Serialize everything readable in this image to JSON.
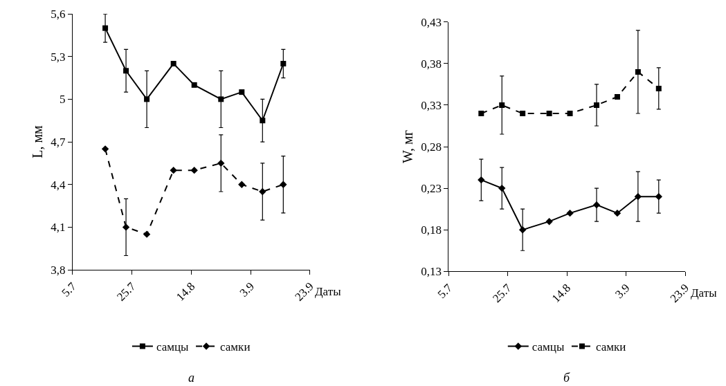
{
  "chart_data": [
    {
      "type": "line",
      "ylabel": "L, мм",
      "xlabel": "Даты",
      "annotations": [
        "а"
      ],
      "legend": "bottom",
      "x": [
        "--07-16",
        "--07-23",
        "--07-30",
        "--08-08",
        "--08-15",
        "--08-24",
        "--08-31",
        "--09-07",
        "--09-14"
      ],
      "xlim": [
        "--07-05",
        "--09-23"
      ],
      "xticks": [
        {
          "value": "--07-05",
          "label": "5.7"
        },
        {
          "value": "--07-25",
          "label": "25.7"
        },
        {
          "value": "--08-14",
          "label": "14.8"
        },
        {
          "value": "--09-03",
          "label": "3.9"
        },
        {
          "value": "--09-23",
          "label": "23.9"
        }
      ],
      "ylim": [
        3.8,
        5.6
      ],
      "yticks": [
        {
          "value": 3.8,
          "label": "3,8"
        },
        {
          "value": 4.1,
          "label": "4,1"
        },
        {
          "value": 4.4,
          "label": "4,4"
        },
        {
          "value": 4.7,
          "label": "4,7"
        },
        5,
        {
          "value": 5.3,
          "label": "5,3"
        },
        {
          "value": 5.6,
          "label": "5,6"
        }
      ],
      "series": [
        {
          "name": "самцы",
          "color": "#000000",
          "marker": "square",
          "line_style": "solid",
          "values": [
            5.5,
            5.2,
            5.0,
            5.25,
            5.1,
            5.0,
            5.05,
            4.85,
            5.25
          ],
          "errors": [
            0.1,
            0.15,
            0.2,
            null,
            null,
            0.2,
            null,
            0.15,
            0.1
          ]
        },
        {
          "name": "самки",
          "color": "#000000",
          "marker": "diamond",
          "line_style": "dashed",
          "values": [
            4.65,
            4.1,
            4.05,
            4.5,
            4.5,
            4.55,
            4.4,
            4.35,
            4.4
          ],
          "errors": [
            null,
            0.2,
            null,
            null,
            null,
            0.2,
            null,
            0.2,
            0.2
          ]
        }
      ]
    },
    {
      "type": "line",
      "ylabel": "W, мг",
      "xlabel": "Даты",
      "annotations": [
        "б"
      ],
      "legend": "bottom",
      "x": [
        "--07-16",
        "--07-23",
        "--07-30",
        "--08-08",
        "--08-15",
        "--08-24",
        "--08-31",
        "--09-07",
        "--09-14"
      ],
      "xlim": [
        "--07-05",
        "--09-23"
      ],
      "xticks": [
        {
          "value": "--07-05",
          "label": "5.7"
        },
        {
          "value": "--07-25",
          "label": "25.7"
        },
        {
          "value": "--08-14",
          "label": "14.8"
        },
        {
          "value": "--09-03",
          "label": "3.9"
        },
        {
          "value": "--09-23",
          "label": "23.9"
        }
      ],
      "ylim": [
        0.13,
        0.43
      ],
      "yticks": [
        {
          "value": 0.13,
          "label": "0,13"
        },
        {
          "value": 0.18,
          "label": "0,18"
        },
        {
          "value": 0.23,
          "label": "0,23"
        },
        {
          "value": 0.28,
          "label": "0,28"
        },
        {
          "value": 0.33,
          "label": "0,33"
        },
        {
          "value": 0.38,
          "label": "0,38"
        },
        {
          "value": 0.43,
          "label": "0,43"
        }
      ],
      "series": [
        {
          "name": "самцы",
          "color": "#000000",
          "marker": "diamond",
          "line_style": "solid",
          "values": [
            0.24,
            0.23,
            0.18,
            0.19,
            0.2,
            0.21,
            0.2,
            0.22,
            0.22
          ],
          "errors": [
            0.025,
            0.025,
            0.025,
            null,
            null,
            0.02,
            null,
            0.03,
            0.02
          ]
        },
        {
          "name": "самки",
          "color": "#000000",
          "marker": "square",
          "line_style": "dashed",
          "values": [
            0.32,
            0.33,
            0.32,
            0.32,
            0.32,
            0.33,
            0.34,
            0.37,
            0.35
          ],
          "errors": [
            null,
            0.035,
            null,
            null,
            null,
            0.025,
            null,
            0.05,
            0.025
          ]
        }
      ]
    }
  ]
}
